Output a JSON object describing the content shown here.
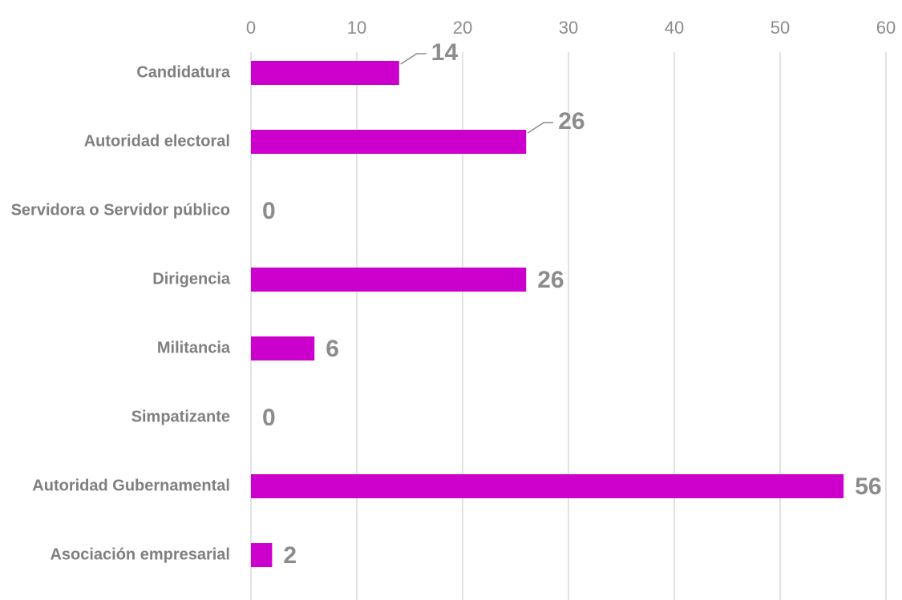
{
  "chart_data": {
    "type": "bar",
    "orientation": "horizontal",
    "categories": [
      "Candidatura",
      "Autoridad electoral",
      "Servidora o Servidor público",
      "Dirigencia",
      "Militancia",
      "Simpatizante",
      "Autoridad Gubernamental",
      "Asociación empresarial"
    ],
    "values": [
      14,
      26,
      0,
      26,
      6,
      0,
      56,
      2
    ],
    "data_labels": [
      "14",
      "26",
      "0",
      "26",
      "6",
      "0",
      "56",
      "2"
    ],
    "xlim": [
      0,
      60
    ],
    "x_ticks": [
      0,
      10,
      20,
      30,
      40,
      50,
      60
    ],
    "x_tick_labels": [
      "0",
      "10",
      "20",
      "30",
      "40",
      "50",
      "60"
    ],
    "x_axis_position": "top",
    "grid": true,
    "legend": "none",
    "bar_color": "#cc00cc",
    "label_color": "#8c8c8c",
    "gridline_color": "#d9d9d9"
  }
}
